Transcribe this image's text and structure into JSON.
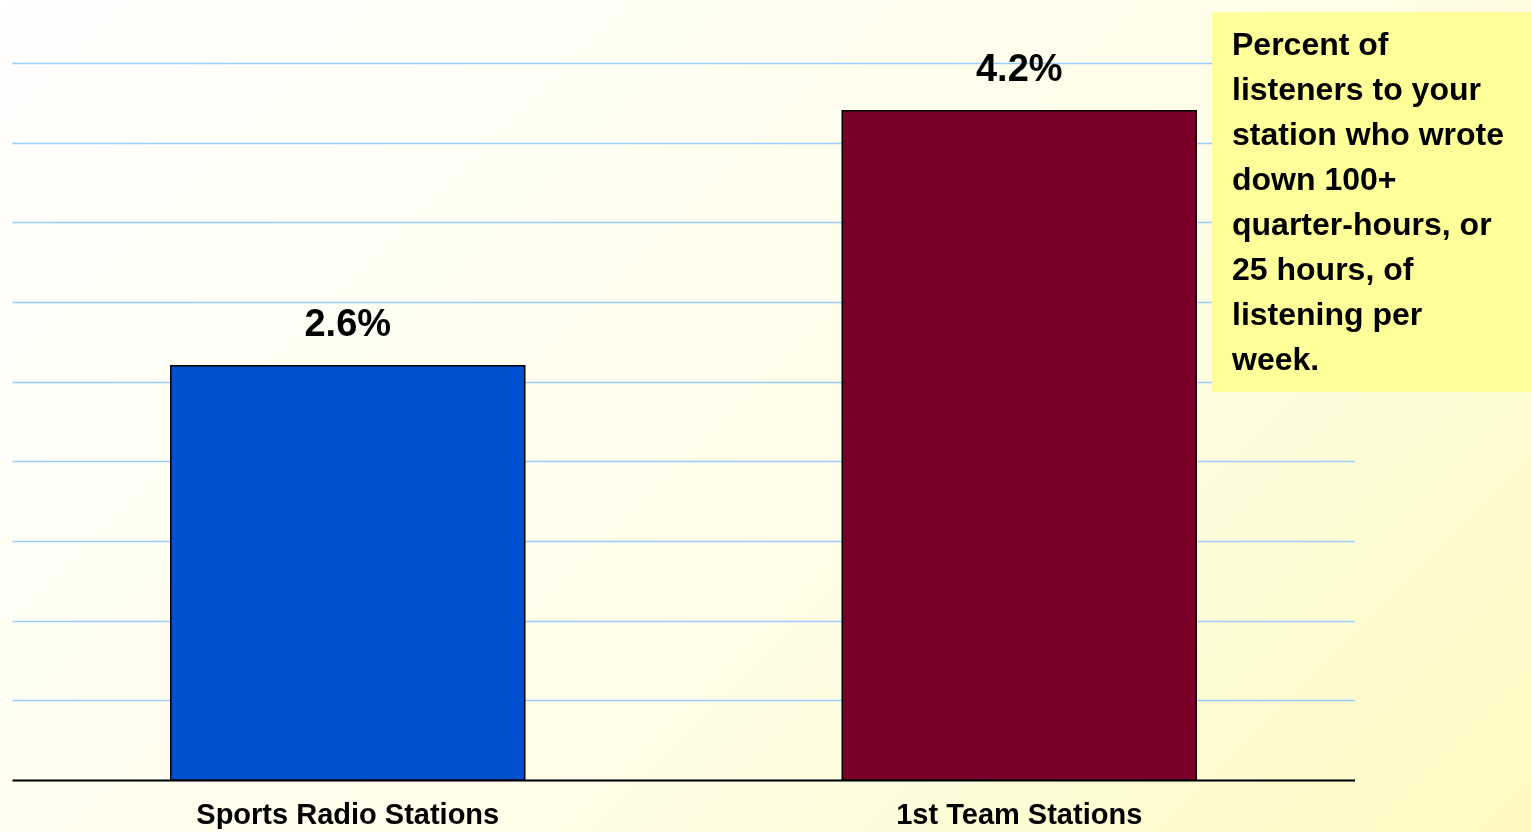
{
  "chart_data": {
    "type": "bar",
    "categories": [
      "Sports Radio Stations",
      "1st Team Stations"
    ],
    "values": [
      2.6,
      4.2
    ],
    "colors": [
      "#0050d0",
      "#7a0028"
    ],
    "value_labels": [
      "2.6%",
      "4.2%"
    ],
    "ylim": [
      0,
      4.5
    ],
    "yticks": [
      {
        "value": 0,
        "label": null
      },
      {
        "value": 0.5,
        "label": null
      },
      {
        "value": 1,
        "label": null
      },
      {
        "value": 1.5,
        "label": null
      },
      {
        "value": 2,
        "label": null
      },
      {
        "value": 2.5,
        "label": null
      },
      {
        "value": 3,
        "label": null
      },
      {
        "value": 3.5,
        "label": null
      },
      {
        "value": 4,
        "label": null
      },
      {
        "value": 4.5,
        "label": null
      }
    ],
    "grid": "y",
    "tick_labels": "x",
    "annotations": [
      "Percent of listeners to your station who wrote down 100+ quarter-hours, or 25 hours, of listening per week."
    ]
  }
}
